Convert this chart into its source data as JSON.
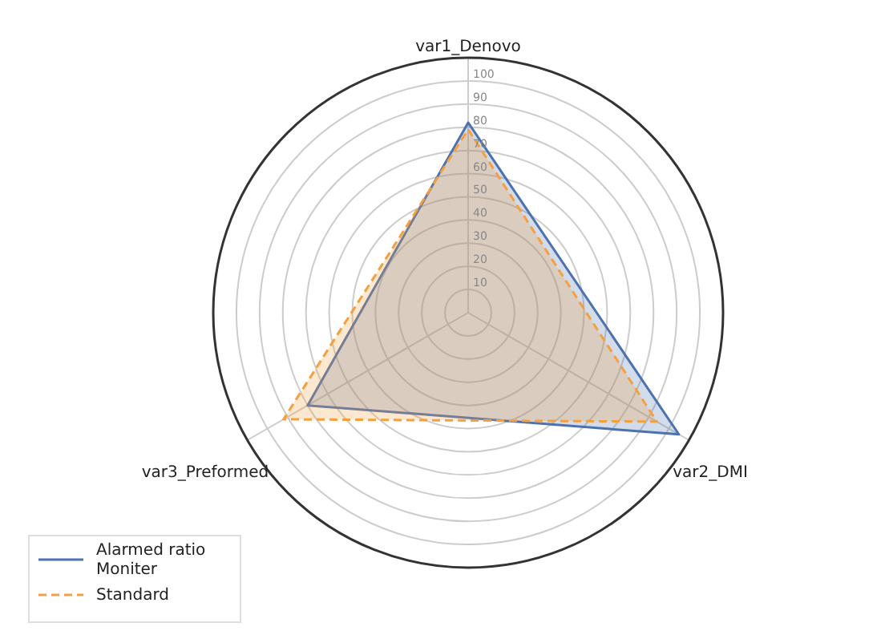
{
  "chart_data": {
    "type": "radar",
    "categories": [
      "var1_Denovo",
      "var2_DMI",
      "var3_Preformed"
    ],
    "series": [
      {
        "name": "Alarmed ratio\nMoniter",
        "color": "#4c72b0",
        "values": [
          82,
          105,
          80
        ],
        "line_style": "solid"
      },
      {
        "name": "Standard",
        "color": "#f5a040",
        "values": [
          79,
          94,
          92
        ],
        "line_style": "dashed"
      }
    ],
    "ylim": [
      0,
      110
    ],
    "yticks": [
      10,
      20,
      30,
      40,
      50,
      60,
      70,
      80,
      90,
      100
    ],
    "grid": true,
    "legend": "bottom left"
  }
}
